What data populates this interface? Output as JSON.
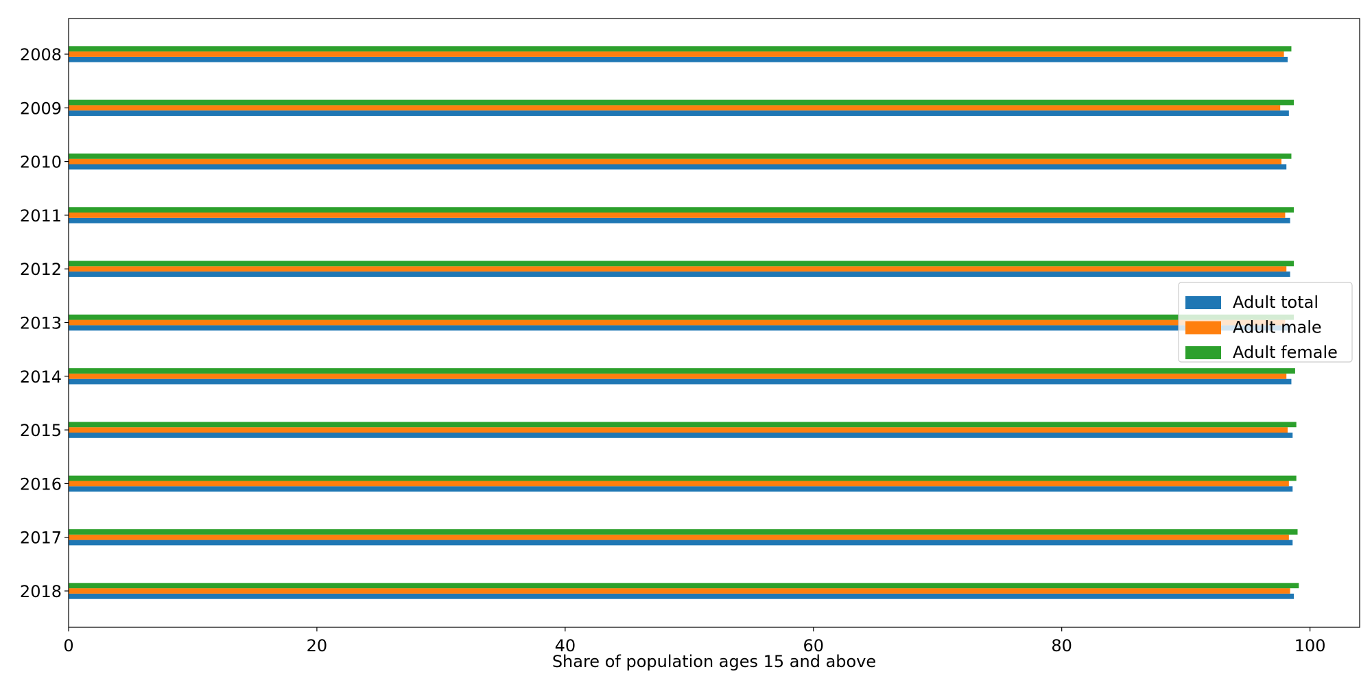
{
  "chart_data": {
    "type": "bar",
    "orientation": "horizontal",
    "title": "",
    "xlabel": "Share of population ages 15 and above",
    "ylabel": "",
    "xlim": [
      0,
      104
    ],
    "xticks": [
      0,
      20,
      40,
      60,
      80,
      100
    ],
    "grid": false,
    "legend_position": "center-right",
    "categories": [
      "2008",
      "2009",
      "2010",
      "2011",
      "2012",
      "2013",
      "2014",
      "2015",
      "2016",
      "2017",
      "2018"
    ],
    "series": [
      {
        "name": "Adult total",
        "color": "#1f77b4",
        "values": [
          98.2,
          98.3,
          98.1,
          98.4,
          98.4,
          98.5,
          98.5,
          98.6,
          98.6,
          98.6,
          98.7
        ]
      },
      {
        "name": "Adult male",
        "color": "#ff7f0e",
        "values": [
          97.9,
          97.6,
          97.7,
          98.0,
          98.1,
          98.0,
          98.1,
          98.2,
          98.3,
          98.3,
          98.4
        ]
      },
      {
        "name": "Adult female",
        "color": "#2ca02c",
        "values": [
          98.5,
          98.7,
          98.5,
          98.7,
          98.7,
          98.7,
          98.8,
          98.9,
          98.9,
          99.0,
          99.1
        ]
      }
    ]
  }
}
